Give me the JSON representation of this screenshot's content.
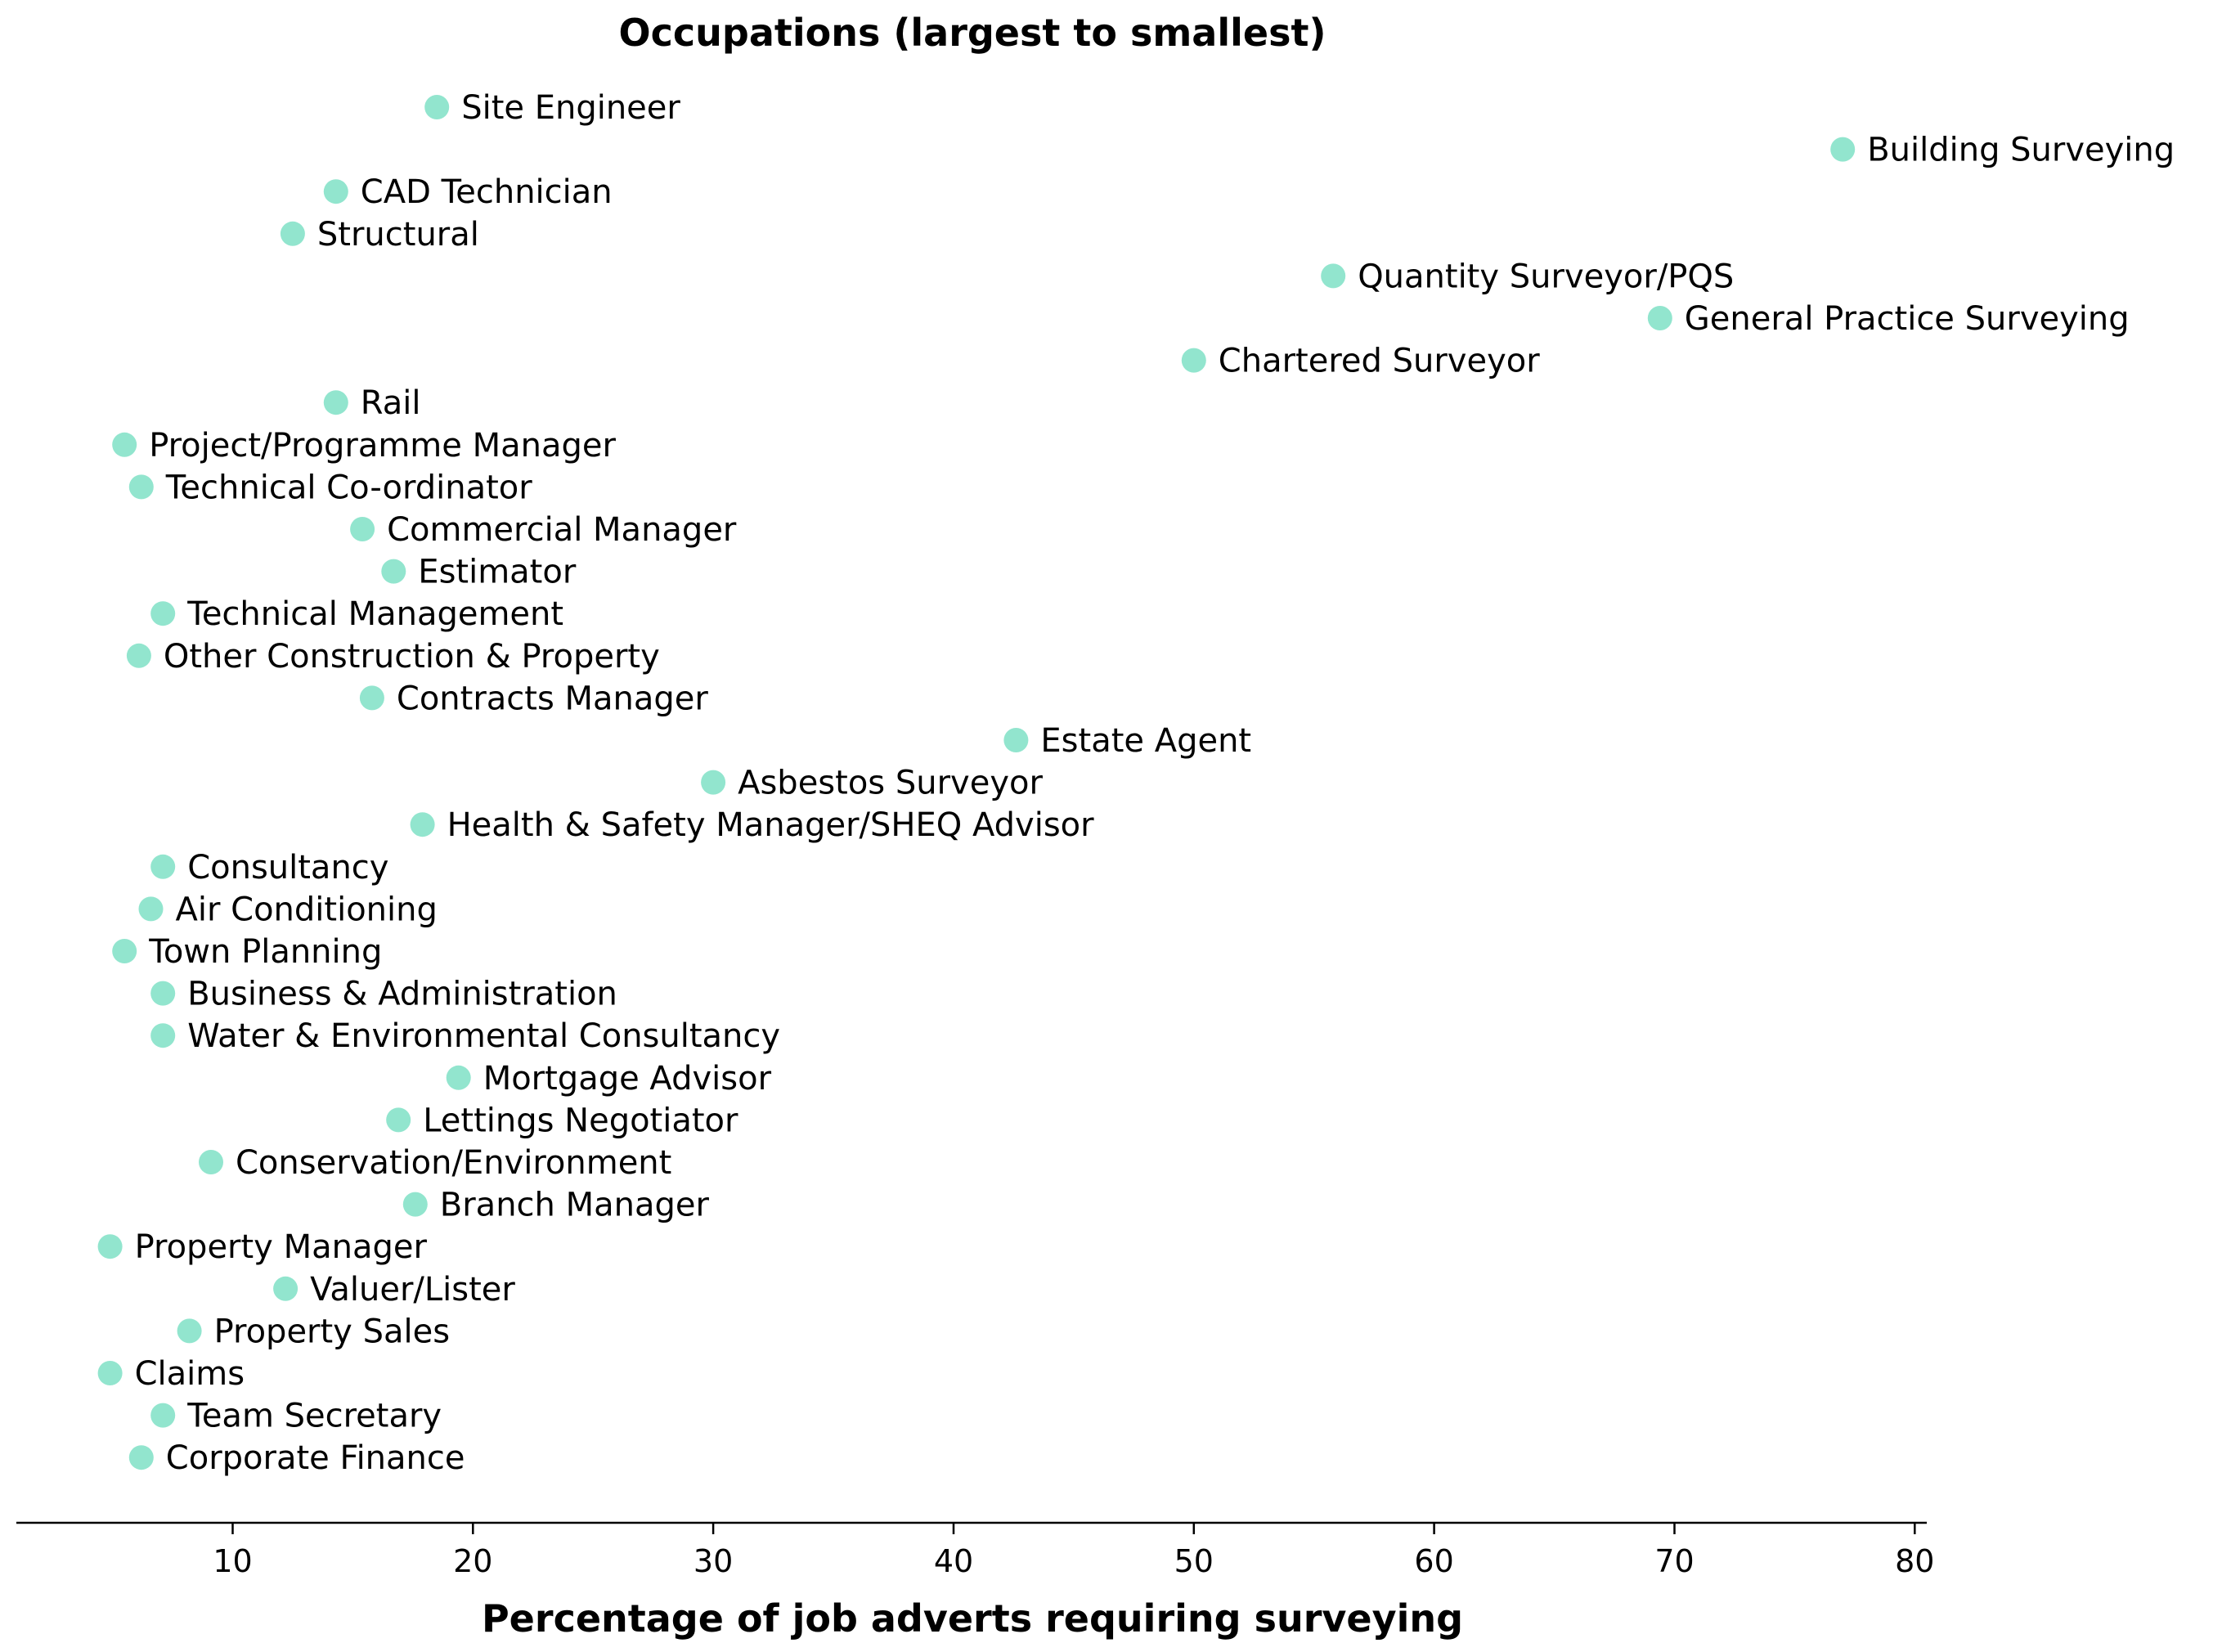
{
  "chart_data": {
    "type": "scatter",
    "title": "Occupations (largest to smallest)",
    "xlabel": "Percentage of job adverts requiring surveying",
    "ylabel": "",
    "xlim": [
      1,
      80.5
    ],
    "xticks": [
      10,
      20,
      30,
      40,
      50,
      60,
      70,
      80
    ],
    "grid": false,
    "legend": "none",
    "marker_color": "#7fe0c6",
    "points": [
      {
        "label": "Site Engineer",
        "x": 18.5
      },
      {
        "label": "Building Surveying",
        "x": 77.0
      },
      {
        "label": "CAD Technician",
        "x": 14.3
      },
      {
        "label": "Structural",
        "x": 12.5
      },
      {
        "label": "Quantity Surveyor/PQS",
        "x": 55.8
      },
      {
        "label": "General Practice Surveying",
        "x": 69.4
      },
      {
        "label": "Chartered Surveyor",
        "x": 50.0
      },
      {
        "label": "Rail",
        "x": 14.3
      },
      {
        "label": "Project/Programme Manager",
        "x": 5.5
      },
      {
        "label": "Technical Co-ordinator",
        "x": 6.2
      },
      {
        "label": "Commercial Manager",
        "x": 15.4
      },
      {
        "label": "Estimator",
        "x": 16.7
      },
      {
        "label": "Technical Management",
        "x": 7.1
      },
      {
        "label": "Other Construction & Property",
        "x": 6.1
      },
      {
        "label": "Contracts Manager",
        "x": 15.8
      },
      {
        "label": "Estate Agent",
        "x": 42.6
      },
      {
        "label": "Asbestos Surveyor",
        "x": 30.0
      },
      {
        "label": "Health & Safety Manager/SHEQ Advisor",
        "x": 17.9
      },
      {
        "label": "Consultancy",
        "x": 7.1
      },
      {
        "label": "Air Conditioning",
        "x": 6.6
      },
      {
        "label": "Town Planning",
        "x": 5.5
      },
      {
        "label": "Business & Administration",
        "x": 7.1
      },
      {
        "label": "Water & Environmental Consultancy",
        "x": 7.1
      },
      {
        "label": "Mortgage Advisor",
        "x": 19.4
      },
      {
        "label": "Lettings Negotiator",
        "x": 16.9
      },
      {
        "label": "Conservation/Environment",
        "x": 9.1
      },
      {
        "label": "Branch Manager",
        "x": 17.6
      },
      {
        "label": "Property Manager",
        "x": 4.9
      },
      {
        "label": "Valuer/Lister",
        "x": 12.2
      },
      {
        "label": "Property Sales",
        "x": 8.2
      },
      {
        "label": "Claims",
        "x": 4.9
      },
      {
        "label": "Team Secretary",
        "x": 7.1
      },
      {
        "label": "Corporate Finance",
        "x": 6.2
      }
    ]
  }
}
